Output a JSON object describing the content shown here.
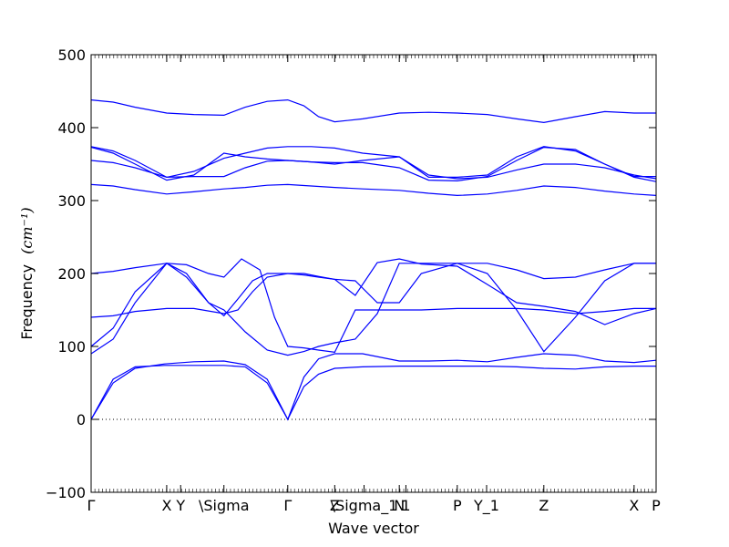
{
  "chart_data": {
    "type": "line",
    "title": "",
    "xlabel": "Wave vector",
    "ylabel": "Frequency",
    "ylabel_unit": "(cm⁻¹)",
    "ylim": [
      -100,
      500
    ],
    "yticks": [
      -100,
      0,
      100,
      200,
      300,
      400,
      500
    ],
    "ytick_labels": [
      "−100",
      "0",
      "100",
      "200",
      "300",
      "400",
      "500"
    ],
    "xlim": [
      0,
      7.7
    ],
    "xticks": [
      {
        "x": 0,
        "label": "Γ"
      },
      {
        "x": 1.03,
        "label": "X"
      },
      {
        "x": 1.22,
        "label": "Y"
      },
      {
        "x": 1.81,
        "label": "\\Sigma"
      },
      {
        "x": 2.68,
        "label": "Γ"
      },
      {
        "x": 3.32,
        "label": "Z"
      },
      {
        "x": 3.72,
        "label": "\\Sigma_1"
      },
      {
        "x": 4.2,
        "label": "N"
      },
      {
        "x": 4.29,
        "label": "1"
      },
      {
        "x": 4.99,
        "label": "P"
      },
      {
        "x": 5.39,
        "label": "Y_1"
      },
      {
        "x": 6.17,
        "label": "Z"
      },
      {
        "x": 7.4,
        "label": "X"
      },
      {
        "x": 7.7,
        "label": "P"
      }
    ],
    "zero_line": true,
    "color": "#0000ff",
    "series": [
      {
        "x": [
          0,
          0.3,
          0.6,
          1.0,
          1.4,
          1.81,
          2.1,
          2.4,
          2.68,
          2.9,
          3.1,
          3.32,
          3.7,
          4.2,
          4.6,
          4.99,
          5.4,
          5.8,
          6.17,
          6.6,
          7.0,
          7.4,
          7.7
        ],
        "values": [
          0,
          55,
          72,
          74,
          74,
          74,
          72,
          50,
          0,
          45,
          62,
          70,
          72,
          73,
          73,
          73,
          73,
          72,
          70,
          69,
          72,
          73,
          73
        ]
      },
      {
        "x": [
          0,
          0.3,
          0.6,
          1.0,
          1.4,
          1.81,
          2.1,
          2.4,
          2.68,
          2.9,
          3.1,
          3.32,
          3.7,
          4.2,
          4.6,
          4.99,
          5.4,
          5.8,
          6.17,
          6.6,
          7.0,
          7.4,
          7.7
        ],
        "values": [
          0,
          50,
          70,
          76,
          79,
          80,
          75,
          55,
          0,
          58,
          83,
          90,
          90,
          80,
          80,
          81,
          79,
          85,
          90,
          88,
          80,
          78,
          81
        ]
      },
      {
        "x": [
          0,
          0.3,
          0.6,
          1.03,
          1.3,
          1.6,
          1.81,
          2.1,
          2.4,
          2.68,
          2.9,
          3.1,
          3.32,
          3.6,
          3.9,
          4.2,
          4.5,
          4.99,
          5.4,
          5.8,
          6.17,
          6.6,
          7.0,
          7.4,
          7.7
        ],
        "values": [
          90,
          110,
          160,
          214,
          200,
          160,
          150,
          120,
          95,
          88,
          93,
          100,
          105,
          110,
          145,
          214,
          214,
          214,
          200,
          150,
          93,
          140,
          190,
          214,
          214
        ]
      },
      {
        "x": [
          0,
          0.3,
          0.6,
          1.03,
          1.3,
          1.6,
          1.81,
          2.0,
          2.2,
          2.4,
          2.68,
          2.9,
          3.1,
          3.32,
          3.6,
          3.9,
          4.2,
          4.5,
          4.99,
          5.4,
          5.8,
          6.17,
          6.6,
          7.0,
          7.4,
          7.7
        ],
        "values": [
          100,
          125,
          175,
          214,
          195,
          160,
          142,
          165,
          190,
          200,
          200,
          198,
          195,
          192,
          190,
          160,
          160,
          200,
          214,
          214,
          205,
          193,
          195,
          205,
          214,
          214
        ]
      },
      {
        "x": [
          0,
          0.3,
          0.6,
          1.03,
          1.3,
          1.6,
          1.81,
          2.05,
          2.3,
          2.5,
          2.68,
          2.9,
          3.1,
          3.32,
          3.6,
          3.9,
          4.2,
          4.5,
          4.99,
          5.4,
          5.8,
          6.17,
          6.6,
          7.0,
          7.4,
          7.7
        ],
        "values": [
          200,
          203,
          208,
          214,
          212,
          200,
          195,
          220,
          205,
          140,
          100,
          98,
          95,
          92,
          150,
          150,
          150,
          150,
          152,
          152,
          152,
          150,
          145,
          148,
          152,
          152
        ]
      },
      {
        "x": [
          0,
          0.3,
          0.6,
          1.03,
          1.4,
          1.81,
          2.0,
          2.2,
          2.4,
          2.68,
          2.9,
          3.1,
          3.32,
          3.6,
          3.9,
          4.2,
          4.5,
          4.99,
          5.4,
          5.8,
          6.17,
          6.6,
          7.0,
          7.4,
          7.7
        ],
        "values": [
          140,
          142,
          148,
          152,
          152,
          145,
          150,
          175,
          195,
          200,
          200,
          196,
          192,
          170,
          215,
          220,
          213,
          210,
          185,
          160,
          155,
          148,
          130,
          145,
          152
        ]
      },
      {
        "x": [
          0,
          0.3,
          0.6,
          1.03,
          1.4,
          1.81,
          2.1,
          2.4,
          2.68,
          3.0,
          3.32,
          3.7,
          4.2,
          4.6,
          4.99,
          5.4,
          5.8,
          6.17,
          6.6,
          7.0,
          7.4,
          7.7
        ],
        "values": [
          322,
          320,
          315,
          309,
          312,
          316,
          318,
          321,
          322,
          320,
          318,
          316,
          314,
          310,
          307,
          309,
          314,
          320,
          318,
          313,
          309,
          307
        ]
      },
      {
        "x": [
          0,
          0.3,
          0.6,
          1.03,
          1.4,
          1.81,
          2.1,
          2.4,
          2.68,
          3.0,
          3.32,
          3.7,
          4.2,
          4.6,
          4.99,
          5.4,
          5.8,
          6.17,
          6.6,
          7.0,
          7.4,
          7.7
        ],
        "values": [
          355,
          352,
          345,
          332,
          333,
          333,
          345,
          354,
          355,
          353,
          350,
          355,
          360,
          335,
          330,
          332,
          342,
          350,
          350,
          345,
          335,
          330
        ]
      },
      {
        "x": [
          0,
          0.3,
          0.6,
          1.03,
          1.4,
          1.81,
          2.1,
          2.4,
          2.68,
          3.0,
          3.32,
          3.7,
          4.2,
          4.6,
          4.99,
          5.4,
          5.8,
          6.17,
          6.6,
          7.0,
          7.4,
          7.7
        ],
        "values": [
          373,
          365,
          350,
          328,
          335,
          365,
          360,
          357,
          355,
          353,
          352,
          352,
          345,
          328,
          327,
          333,
          355,
          373,
          370,
          350,
          332,
          326
        ]
      },
      {
        "x": [
          0,
          0.3,
          0.6,
          1.03,
          1.4,
          1.81,
          2.1,
          2.4,
          2.68,
          3.0,
          3.32,
          3.7,
          4.2,
          4.6,
          4.99,
          5.4,
          5.8,
          6.17,
          6.6,
          7.0,
          7.4,
          7.7
        ],
        "values": [
          374,
          368,
          355,
          332,
          340,
          358,
          365,
          372,
          374,
          374,
          372,
          365,
          360,
          332,
          332,
          335,
          360,
          374,
          368,
          350,
          333,
          333
        ]
      },
      {
        "x": [
          0,
          0.3,
          0.6,
          1.03,
          1.4,
          1.81,
          2.1,
          2.4,
          2.68,
          2.9,
          3.1,
          3.32,
          3.7,
          4.2,
          4.6,
          4.99,
          5.4,
          5.8,
          6.17,
          6.6,
          7.0,
          7.4,
          7.7
        ],
        "values": [
          438,
          435,
          428,
          420,
          418,
          417,
          428,
          436,
          438,
          430,
          415,
          408,
          412,
          420,
          421,
          420,
          418,
          412,
          407,
          415,
          422,
          420,
          420
        ]
      }
    ]
  }
}
